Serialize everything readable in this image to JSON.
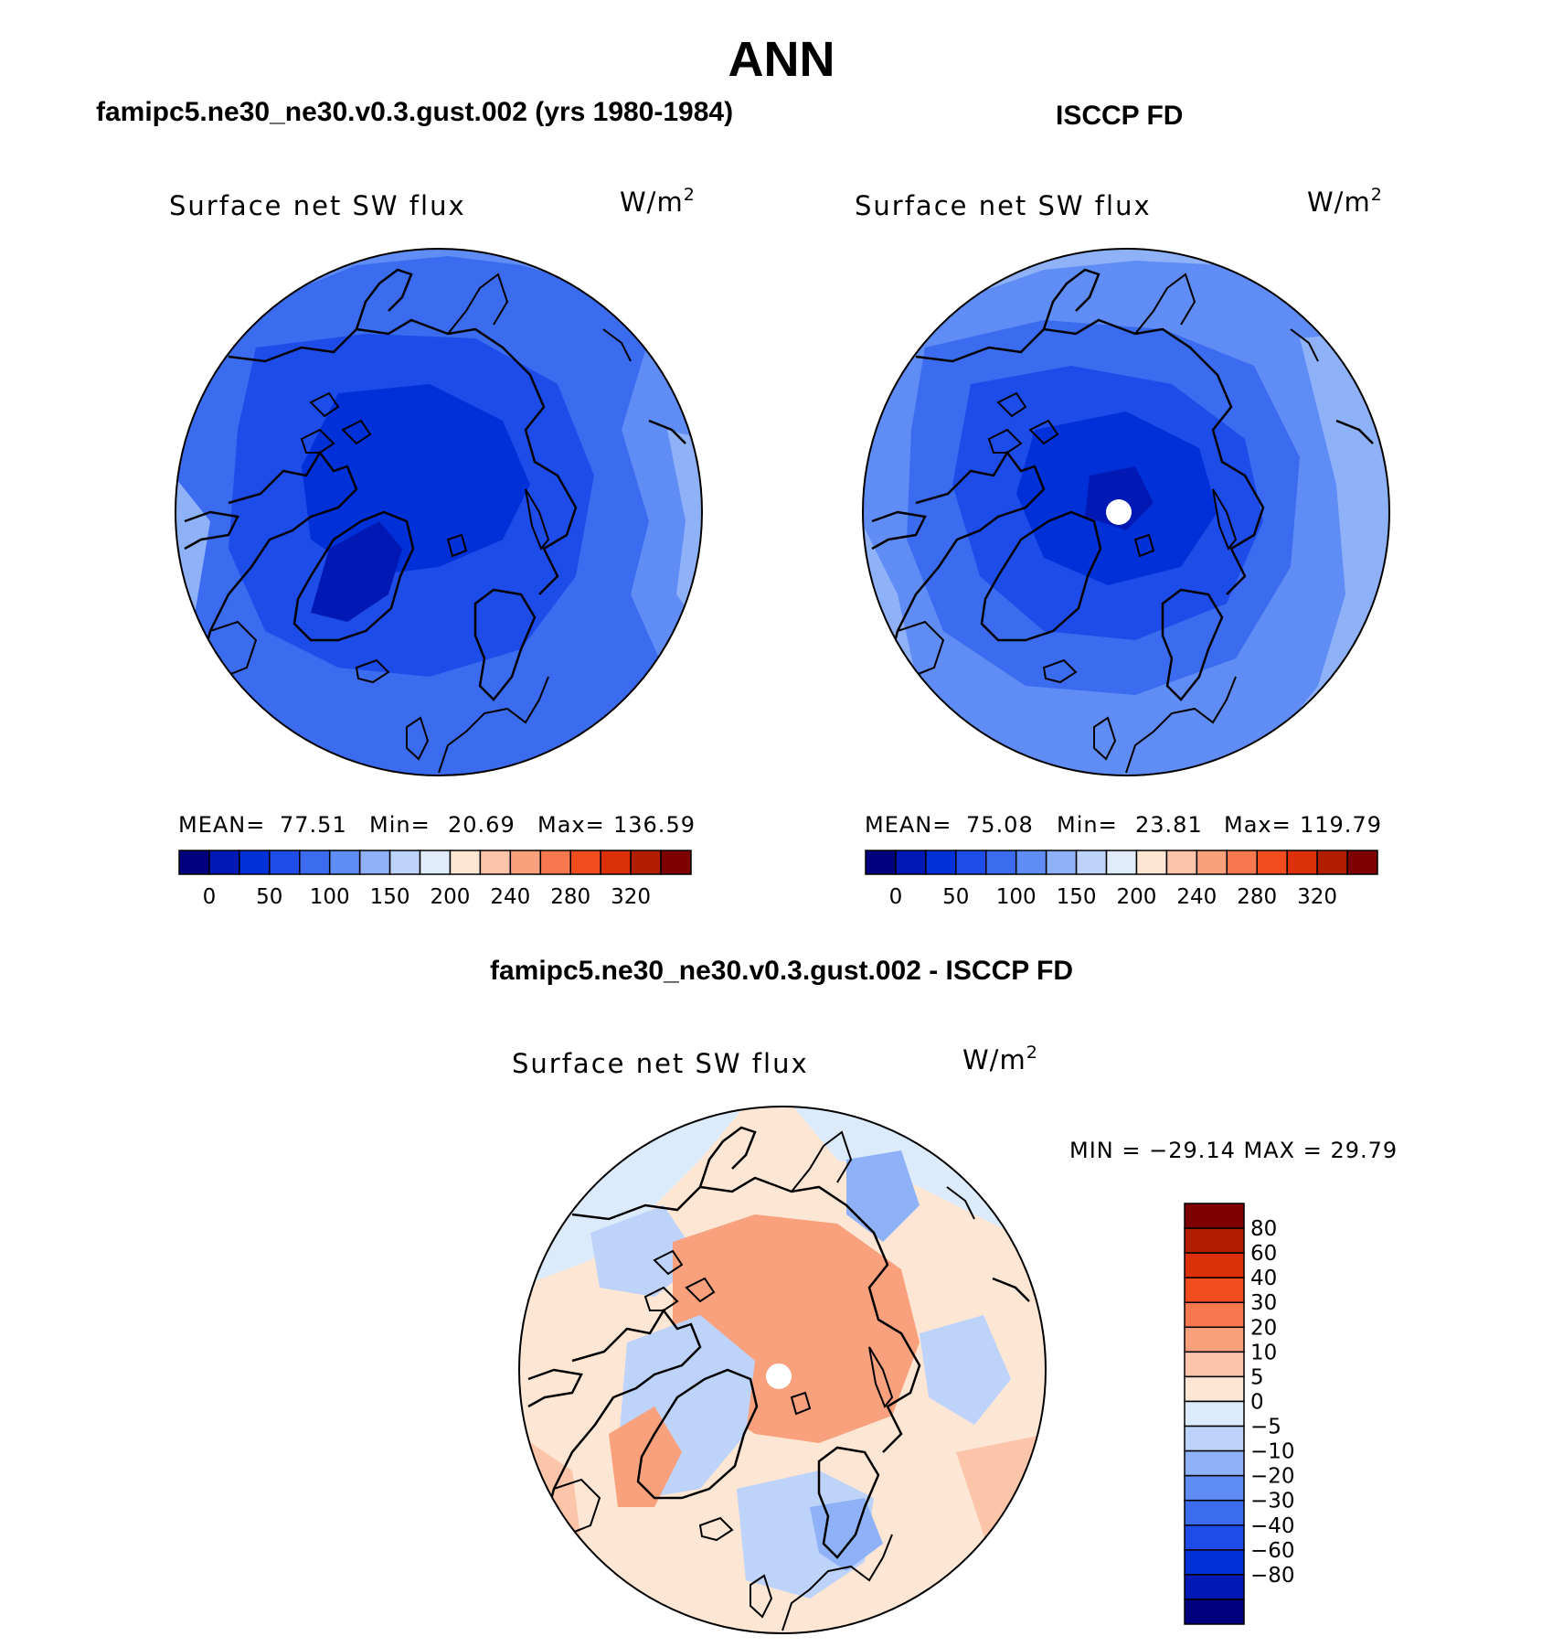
{
  "header": {
    "title": "ANN",
    "left_label": "famipc5.ne30_ne30.v0.3.gust.002 (yrs 1980-1984)",
    "right_label": "ISCCP FD",
    "diff_label": "famipc5.ne30_ne30.v0.3.gust.002 - ISCCP FD"
  },
  "panels": {
    "left": {
      "field": "Surface net SW flux",
      "units": "W/m",
      "units_exp": "2",
      "mean_label": "MEAN=",
      "mean": "77.51",
      "min_label": "Min=",
      "min": "20.69",
      "max_label": "Max=",
      "max": "136.59"
    },
    "right": {
      "field": "Surface net SW flux",
      "units": "W/m",
      "units_exp": "2",
      "mean_label": "MEAN=",
      "mean": "75.08",
      "min_label": "Min=",
      "min": "23.81",
      "max_label": "Max=",
      "max": "119.79"
    },
    "diff": {
      "field": "Surface net SW flux",
      "units": "W/m",
      "units_exp": "2",
      "minmax_text": "MIN = −29.14 MAX =  29.79"
    }
  },
  "colorbars": {
    "absolute": {
      "colors": [
        "#00007f",
        "#0019b4",
        "#0030d8",
        "#1e4ce8",
        "#3b6cf0",
        "#5f8cf5",
        "#8eb1f7",
        "#bdd3fa",
        "#e0ecfb",
        "#fde6d4",
        "#fcc4a8",
        "#f9a07c",
        "#f7784f",
        "#f24d1e",
        "#db3008",
        "#b11e00",
        "#7f0000"
      ],
      "tick_labels": [
        "0",
        "50",
        "100",
        "150",
        "200",
        "240",
        "280",
        "320"
      ]
    },
    "difference": {
      "colors": [
        "#7f0000",
        "#b11e00",
        "#db3008",
        "#f24d1e",
        "#f7784f",
        "#f9a07c",
        "#fcc4a8",
        "#fde6d4",
        "#dcebfb",
        "#bdd3fa",
        "#8eb1f7",
        "#5f8cf5",
        "#3b6cf0",
        "#1e4ce8",
        "#0030d8",
        "#0019b4",
        "#00007f"
      ],
      "tick_labels": [
        "80",
        "60",
        "40",
        "30",
        "20",
        "10",
        "5",
        "0",
        "−5",
        "−10",
        "−20",
        "−30",
        "−40",
        "−60",
        "−80"
      ]
    }
  },
  "map_fills": {
    "left": {
      "base": "#3b6cf0",
      "rim": "#5f8cf5",
      "outer": "#8eb1f7",
      "inner": "#1e4ce8",
      "core": "#0030d8",
      "deep": "#0019b4"
    },
    "right": {
      "base": "#3b6cf0",
      "rim": "#5f8cf5",
      "outer": "#8eb1f7",
      "inner": "#1e4ce8",
      "core": "#0030d8",
      "deep": "#0019b4"
    },
    "diff": {
      "base": "#fde6d4",
      "warm": "#fcc4a8",
      "hot": "#f9a07c",
      "cool": "#dcebfb",
      "cold": "#bdd3fa",
      "colder": "#8eb1f7",
      "coldest": "#5f8cf5"
    }
  }
}
